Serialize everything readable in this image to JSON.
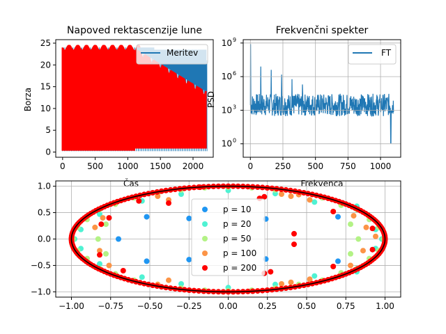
{
  "chart_data": [
    {
      "type": "line",
      "title": "Napoved rektascenzije lune",
      "xlabel": "Čas",
      "ylabel": "Borza",
      "xlim": [
        -105,
        2310
      ],
      "ylim": [
        -1.2,
        25.8
      ],
      "xticks": [
        0,
        500,
        1000,
        1500,
        2000
      ],
      "xtick_labels": [
        "0",
        "500",
        "1000",
        "1500",
        "2000"
      ],
      "yticks": [
        0,
        5,
        10,
        15,
        20,
        25
      ],
      "ytick_labels": [
        "0",
        "5",
        "10",
        "15",
        "20",
        "25"
      ],
      "grid": false,
      "legend_position": "top-right",
      "series": [
        {
          "name": "Meritev",
          "color": "#1f77b4",
          "x_range": [
            0,
            2200
          ],
          "y_range": [
            0,
            24
          ],
          "sawtooth_period_approx": 27
        },
        {
          "color": "#ff0000",
          "x_range": [
            0,
            2200
          ],
          "y_range": [
            0.3,
            24.8
          ],
          "note_visible": "fills 0–24 until ~1100, upper envelope decays to ~14 at 2200"
        }
      ]
    },
    {
      "type": "line",
      "title": "Frekvenčni spekter",
      "xlabel": "Frekvenca",
      "ylabel": "PSD",
      "yscale": "log",
      "xlim": [
        -55,
        1155
      ],
      "ylim_log10": [
        -1.2,
        9.3
      ],
      "xticks": [
        0,
        250,
        500,
        750,
        1000
      ],
      "xtick_labels": [
        "0",
        "250",
        "500",
        "750",
        "1000"
      ],
      "yticks_log10": [
        0,
        3,
        6,
        9
      ],
      "ytick_labels": [
        "10^0",
        "10^3",
        "10^6",
        "10^9"
      ],
      "grid": true,
      "legend_position": "top-right",
      "series": [
        {
          "name": "FT",
          "color": "#1f77b4",
          "peaks": [
            {
              "x": 2,
              "y": 800000000
            },
            {
              "x": 80,
              "y": 8000000
            },
            {
              "x": 160,
              "y": 4000000
            },
            {
              "x": 240,
              "y": 1500000
            },
            {
              "x": 320,
              "y": 600000
            },
            {
              "x": 400,
              "y": 200000
            },
            {
              "x": 1080,
              "y": 1.2
            }
          ],
          "baseline_range": [
            300,
            30000
          ]
        }
      ]
    },
    {
      "type": "scatter",
      "xlim": [
        -1.1,
        1.1
      ],
      "ylim": [
        -1.1,
        1.1
      ],
      "xticks": [
        -1.0,
        -0.75,
        -0.5,
        -0.25,
        0.0,
        0.25,
        0.5,
        0.75,
        1.0
      ],
      "xtick_labels": [
        "−1.00",
        "−0.75",
        "−0.50",
        "−0.25",
        "0.00",
        "0.25",
        "0.50",
        "0.75",
        "1.00"
      ],
      "yticks": [
        -1.0,
        -0.5,
        0.0,
        0.5,
        1.0
      ],
      "ytick_labels": [
        "−1.0",
        "−0.5",
        "0.0",
        "0.5",
        "1.0"
      ],
      "grid": true,
      "legend_position": "center",
      "series": [
        {
          "name": "p = 10",
          "color": "#1f96f2",
          "points": [
            [
              1,
              0
            ],
            [
              0.7,
              0.42
            ],
            [
              0.24,
              0.38
            ],
            [
              -0.25,
              0.39
            ],
            [
              -0.52,
              0.42
            ],
            [
              -0.7,
              0
            ],
            [
              -0.52,
              -0.42
            ],
            [
              -0.25,
              -0.39
            ],
            [
              0.24,
              -0.38
            ],
            [
              0.7,
              -0.42
            ]
          ]
        },
        {
          "name": "p = 20",
          "color": "#4ff2d3",
          "points": [
            [
              0.98,
              0
            ],
            [
              0.94,
              0.18
            ],
            [
              0.82,
              0.62
            ],
            [
              0.55,
              0.7
            ],
            [
              0.3,
              0.86
            ],
            [
              0,
              0.92
            ],
            [
              -0.3,
              0.85
            ],
            [
              -0.55,
              0.72
            ],
            [
              -0.82,
              0.47
            ],
            [
              -0.94,
              0.18
            ],
            [
              -0.98,
              0
            ],
            [
              -0.94,
              -0.18
            ],
            [
              -0.82,
              -0.47
            ],
            [
              -0.55,
              -0.72
            ],
            [
              -0.3,
              -0.85
            ],
            [
              0,
              -0.92
            ],
            [
              0.3,
              -0.86
            ],
            [
              0.55,
              -0.7
            ],
            [
              0.82,
              -0.62
            ],
            [
              0.94,
              -0.18
            ]
          ]
        },
        {
          "name": "p = 50",
          "color": "#b3f285",
          "points": [
            [
              0.96,
              0.22
            ],
            [
              0.9,
              0.37
            ],
            [
              0.82,
              0.56
            ],
            [
              0.72,
              0.64
            ],
            [
              0.6,
              0.78
            ],
            [
              0.45,
              0.86
            ],
            [
              0.3,
              0.93
            ],
            [
              0.15,
              0.97
            ],
            [
              0,
              0.98
            ],
            [
              -0.15,
              0.97
            ],
            [
              -0.3,
              0.93
            ],
            [
              -0.45,
              0.86
            ],
            [
              -0.6,
              0.78
            ],
            [
              -0.72,
              0.66
            ],
            [
              -0.82,
              0.56
            ],
            [
              -0.9,
              0.37
            ],
            [
              -0.96,
              0.22
            ],
            [
              -0.99,
              0
            ],
            [
              -0.96,
              -0.22
            ],
            [
              -0.9,
              -0.37
            ],
            [
              -0.82,
              -0.56
            ],
            [
              -0.72,
              -0.66
            ],
            [
              -0.6,
              -0.78
            ],
            [
              -0.45,
              -0.86
            ],
            [
              -0.3,
              -0.93
            ],
            [
              -0.15,
              -0.97
            ],
            [
              0,
              -0.98
            ],
            [
              0.15,
              -0.97
            ],
            [
              0.3,
              -0.93
            ],
            [
              0.45,
              -0.86
            ],
            [
              0.6,
              -0.78
            ],
            [
              0.72,
              -0.64
            ],
            [
              0.82,
              -0.56
            ],
            [
              0.9,
              -0.37
            ],
            [
              0.96,
              -0.22
            ],
            [
              0.99,
              0
            ],
            [
              -0.83,
              0
            ],
            [
              -0.78,
              0.28
            ],
            [
              -0.78,
              -0.28
            ],
            [
              0.78,
              0.28
            ],
            [
              0.78,
              -0.28
            ],
            [
              0.83,
              0
            ]
          ]
        },
        {
          "name": "p = 100",
          "color": "#fc9446",
          "points": [
            [
              0.34,
              0.85
            ],
            [
              0.4,
              0.81
            ],
            [
              0.45,
              0.84
            ],
            [
              0.52,
              0.74
            ],
            [
              -0.38,
              0.74
            ],
            [
              -0.45,
              0.81
            ],
            [
              -0.8,
              0.4
            ],
            [
              -0.85,
              0.22
            ],
            [
              -0.82,
              -0.22
            ],
            [
              -0.76,
              -0.5
            ],
            [
              -0.38,
              -0.78
            ],
            [
              -0.45,
              -0.86
            ],
            [
              0.34,
              -0.85
            ],
            [
              0.4,
              -0.82
            ],
            [
              0.52,
              -0.76
            ],
            [
              0.78,
              -0.5
            ],
            [
              0.86,
              -0.22
            ],
            [
              0.88,
              0.22
            ],
            [
              0.8,
              0.44
            ],
            [
              0.94,
              0.05
            ]
          ]
        },
        {
          "name": "p = 200",
          "color": "#ff0000",
          "points": [
            [
              0.2,
              0.77
            ],
            [
              0.23,
              0.8
            ],
            [
              -0.28,
              0.96
            ],
            [
              -0.18,
              0.98
            ],
            [
              -0.57,
              0.72
            ],
            [
              -0.38,
              0.68
            ],
            [
              -0.81,
              0.28
            ],
            [
              -0.76,
              0.4
            ],
            [
              0.42,
              0.1
            ],
            [
              0.42,
              -0.1
            ],
            [
              -0.82,
              -0.3
            ],
            [
              -0.67,
              -0.6
            ],
            [
              0.23,
              -0.65
            ],
            [
              0.27,
              -0.62
            ],
            [
              0.67,
              0.52
            ],
            [
              0.67,
              -0.52
            ],
            [
              0.92,
              0.2
            ],
            [
              0.92,
              -0.2
            ]
          ]
        },
        {
          "name": "",
          "color": "#000000",
          "type": "ellipse_outline",
          "semi_axes": [
            1,
            1
          ]
        }
      ]
    }
  ]
}
